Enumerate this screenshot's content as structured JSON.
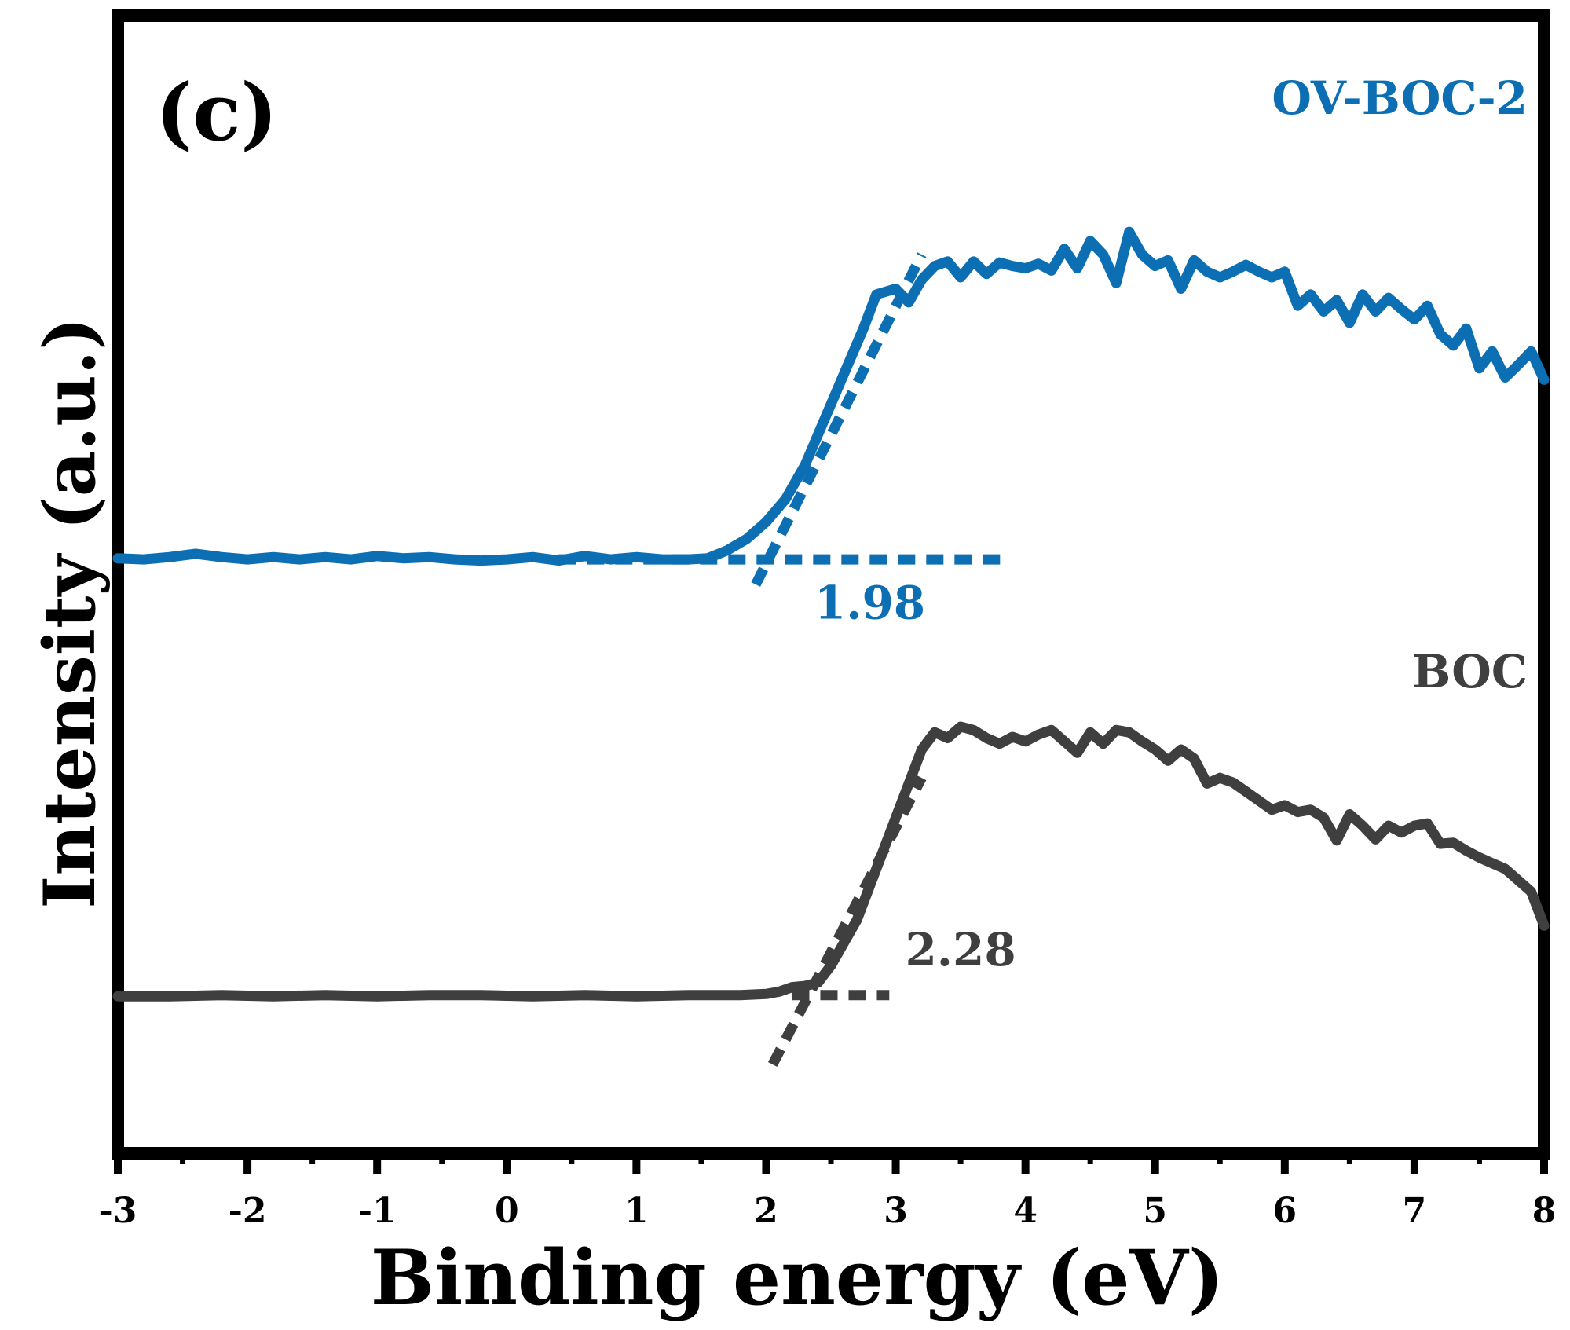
{
  "chart_data": {
    "type": "line",
    "panel_label": "(c)",
    "xlabel": "Binding energy (eV)",
    "ylabel": "Intensity (a.u.)",
    "xlim": [
      -3,
      8
    ],
    "ylim": [
      0,
      1
    ],
    "x_ticks": [
      "-3",
      "-2",
      "-1",
      "0",
      "1",
      "2",
      "3",
      "4",
      "5",
      "6",
      "7",
      "8"
    ],
    "y_ticks_labeled": false,
    "grid": false,
    "colors": {
      "blue": "#0d6fb3",
      "gray": "#3f3f3f",
      "axis": "#000000"
    },
    "series": [
      {
        "name": "OV-BOC-2",
        "color": "#0d6fb3",
        "x": [
          -3.0,
          -2.8,
          -2.6,
          -2.4,
          -2.2,
          -2.0,
          -1.8,
          -1.6,
          -1.4,
          -1.2,
          -1.0,
          -0.8,
          -0.6,
          -0.4,
          -0.2,
          0.0,
          0.2,
          0.4,
          0.6,
          0.8,
          1.0,
          1.2,
          1.4,
          1.55,
          1.7,
          1.85,
          2.0,
          2.15,
          2.3,
          2.45,
          2.6,
          2.75,
          2.85,
          3.0,
          3.1,
          3.2,
          3.3,
          3.4,
          3.5,
          3.6,
          3.7,
          3.8,
          3.9,
          4.0,
          4.1,
          4.2,
          4.3,
          4.4,
          4.5,
          4.6,
          4.7,
          4.8,
          4.9,
          5.0,
          5.1,
          5.2,
          5.3,
          5.4,
          5.5,
          5.6,
          5.7,
          5.8,
          5.9,
          6.0,
          6.1,
          6.2,
          6.3,
          6.4,
          6.5,
          6.6,
          6.7,
          6.8,
          6.9,
          7.0,
          7.1,
          7.2,
          7.3,
          7.4,
          7.5,
          7.6,
          7.7,
          7.8,
          7.9,
          8.0
        ],
        "y": [
          0.523,
          0.522,
          0.524,
          0.527,
          0.524,
          0.522,
          0.524,
          0.522,
          0.524,
          0.522,
          0.525,
          0.523,
          0.524,
          0.522,
          0.521,
          0.522,
          0.524,
          0.521,
          0.525,
          0.522,
          0.524,
          0.522,
          0.522,
          0.523,
          0.53,
          0.54,
          0.555,
          0.575,
          0.605,
          0.645,
          0.685,
          0.725,
          0.755,
          0.76,
          0.748,
          0.768,
          0.78,
          0.784,
          0.77,
          0.784,
          0.773,
          0.783,
          0.78,
          0.778,
          0.782,
          0.776,
          0.795,
          0.778,
          0.802,
          0.79,
          0.765,
          0.81,
          0.79,
          0.78,
          0.785,
          0.76,
          0.785,
          0.775,
          0.77,
          0.775,
          0.781,
          0.775,
          0.77,
          0.775,
          0.745,
          0.755,
          0.74,
          0.75,
          0.73,
          0.755,
          0.74,
          0.752,
          0.742,
          0.733,
          0.745,
          0.72,
          0.71,
          0.725,
          0.69,
          0.705,
          0.682,
          0.693,
          0.705,
          0.68
        ]
      },
      {
        "name": "BOC",
        "color": "#3f3f3f",
        "x": [
          -3.0,
          -2.6,
          -2.2,
          -1.8,
          -1.4,
          -1.0,
          -0.6,
          -0.2,
          0.2,
          0.6,
          1.0,
          1.4,
          1.8,
          2.0,
          2.1,
          2.2,
          2.3,
          2.4,
          2.5,
          2.6,
          2.7,
          2.8,
          2.9,
          3.0,
          3.1,
          3.2,
          3.3,
          3.4,
          3.5,
          3.6,
          3.7,
          3.8,
          3.9,
          4.0,
          4.1,
          4.2,
          4.3,
          4.4,
          4.5,
          4.6,
          4.7,
          4.8,
          4.9,
          5.0,
          5.1,
          5.2,
          5.3,
          5.4,
          5.5,
          5.6,
          5.7,
          5.8,
          5.9,
          6.0,
          6.1,
          6.2,
          6.3,
          6.4,
          6.5,
          6.6,
          6.7,
          6.8,
          6.9,
          7.0,
          7.1,
          7.2,
          7.3,
          7.4,
          7.5,
          7.6,
          7.7,
          7.8,
          7.9,
          8.0
        ],
        "y": [
          0.138,
          0.138,
          0.139,
          0.138,
          0.139,
          0.138,
          0.139,
          0.139,
          0.138,
          0.139,
          0.138,
          0.139,
          0.139,
          0.14,
          0.142,
          0.146,
          0.147,
          0.15,
          0.165,
          0.185,
          0.205,
          0.235,
          0.265,
          0.295,
          0.325,
          0.355,
          0.37,
          0.365,
          0.375,
          0.372,
          0.365,
          0.36,
          0.366,
          0.362,
          0.368,
          0.372,
          0.362,
          0.352,
          0.37,
          0.36,
          0.372,
          0.37,
          0.362,
          0.355,
          0.345,
          0.355,
          0.347,
          0.325,
          0.33,
          0.326,
          0.318,
          0.31,
          0.302,
          0.306,
          0.3,
          0.302,
          0.295,
          0.275,
          0.298,
          0.288,
          0.276,
          0.288,
          0.282,
          0.288,
          0.29,
          0.272,
          0.273,
          0.266,
          0.26,
          0.255,
          0.25,
          0.24,
          0.23,
          0.2
        ]
      }
    ],
    "tangent_lines": [
      {
        "series": "OV-BOC-2",
        "baseline": {
          "x": [
            0.4,
            3.85
          ],
          "y": [
            0.522,
            0.522
          ]
        },
        "slope": {
          "x": [
            1.92,
            3.2
          ],
          "y": [
            0.5,
            0.79
          ]
        }
      },
      {
        "series": "BOC",
        "baseline": {
          "x": [
            2.2,
            2.95
          ],
          "y": [
            0.139,
            0.139
          ]
        },
        "slope": {
          "x": [
            2.05,
            3.2
          ],
          "y": [
            0.078,
            0.33
          ]
        }
      }
    ],
    "annotations": [
      {
        "text": "1.98",
        "x": 2.8,
        "y": 0.47,
        "color": "#0d6fb3"
      },
      {
        "text": "2.28",
        "x": 3.5,
        "y": 0.165,
        "color": "#3f3f3f"
      }
    ]
  }
}
